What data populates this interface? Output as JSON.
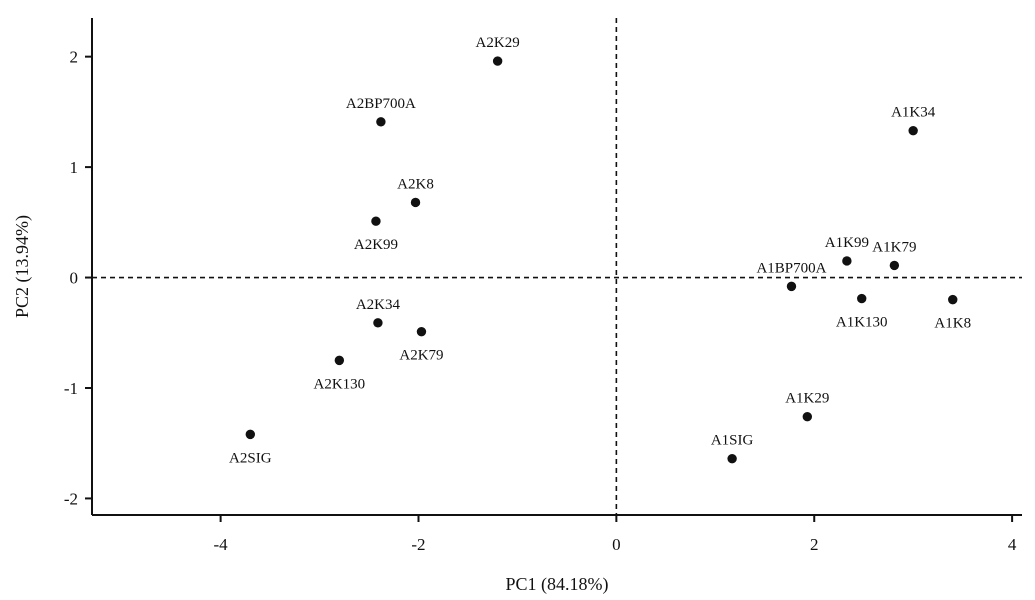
{
  "chart_data": {
    "type": "scatter",
    "xlabel": "PC1 (84.18%)",
    "ylabel": "PC2 (13.94%)",
    "xlim": [
      -5.3,
      4.1
    ],
    "ylim": [
      -2.15,
      2.35
    ],
    "xticks": [
      -4,
      -2,
      0,
      2,
      4
    ],
    "yticks": [
      -2,
      -1,
      0,
      1,
      2
    ],
    "xtick_labels": [
      "-4",
      "-2",
      "0",
      "2",
      "4"
    ],
    "ytick_labels": [
      "-2",
      "-1",
      "0",
      "1",
      "2"
    ],
    "reference_lines": {
      "x": 0,
      "y": 0,
      "style": "dashed"
    },
    "points": [
      {
        "label": "A2K29",
        "x": -1.2,
        "y": 1.96,
        "label_pos": "above"
      },
      {
        "label": "A2BP700A",
        "x": -2.38,
        "y": 1.41,
        "label_pos": "above"
      },
      {
        "label": "A2K8",
        "x": -2.03,
        "y": 0.68,
        "label_pos": "above"
      },
      {
        "label": "A2K99",
        "x": -2.43,
        "y": 0.51,
        "label_pos": "below"
      },
      {
        "label": "A2K34",
        "x": -2.41,
        "y": -0.41,
        "label_pos": "above"
      },
      {
        "label": "A2K79",
        "x": -1.97,
        "y": -0.49,
        "label_pos": "below"
      },
      {
        "label": "A2K130",
        "x": -2.8,
        "y": -0.75,
        "label_pos": "below"
      },
      {
        "label": "A2SIG",
        "x": -3.7,
        "y": -1.42,
        "label_pos": "below"
      },
      {
        "label": "A1K34",
        "x": 3.0,
        "y": 1.33,
        "label_pos": "above"
      },
      {
        "label": "A1K99",
        "x": 2.33,
        "y": 0.15,
        "label_pos": "above"
      },
      {
        "label": "A1K79",
        "x": 2.81,
        "y": 0.11,
        "label_pos": "above"
      },
      {
        "label": "A1BP700A",
        "x": 1.77,
        "y": -0.08,
        "label_pos": "above"
      },
      {
        "label": "A1K130",
        "x": 2.48,
        "y": -0.19,
        "label_pos": "below"
      },
      {
        "label": "A1K8",
        "x": 3.4,
        "y": -0.2,
        "label_pos": "below"
      },
      {
        "label": "A1K29",
        "x": 1.93,
        "y": -1.26,
        "label_pos": "above"
      },
      {
        "label": "A1SIG",
        "x": 1.17,
        "y": -1.64,
        "label_pos": "above"
      }
    ]
  }
}
